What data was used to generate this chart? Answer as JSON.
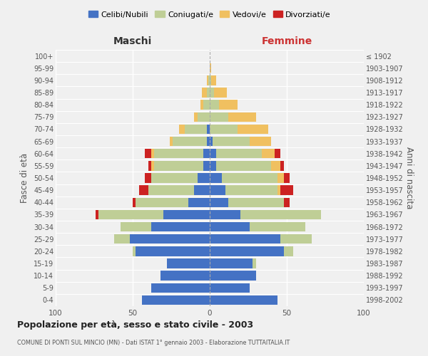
{
  "age_groups": [
    "0-4",
    "5-9",
    "10-14",
    "15-19",
    "20-24",
    "25-29",
    "30-34",
    "35-39",
    "40-44",
    "45-49",
    "50-54",
    "55-59",
    "60-64",
    "65-69",
    "70-74",
    "75-79",
    "80-84",
    "85-89",
    "90-94",
    "95-99",
    "100+"
  ],
  "birth_years": [
    "1998-2002",
    "1993-1997",
    "1988-1992",
    "1983-1987",
    "1978-1982",
    "1973-1977",
    "1968-1972",
    "1963-1967",
    "1958-1962",
    "1953-1957",
    "1948-1952",
    "1943-1947",
    "1938-1942",
    "1933-1937",
    "1928-1932",
    "1923-1927",
    "1918-1922",
    "1913-1917",
    "1908-1912",
    "1903-1907",
    "≤ 1902"
  ],
  "maschi": {
    "celibi": [
      44,
      38,
      32,
      28,
      48,
      52,
      38,
      30,
      14,
      10,
      8,
      4,
      4,
      2,
      2,
      0,
      0,
      0,
      0,
      0,
      0
    ],
    "coniugati": [
      0,
      0,
      0,
      0,
      2,
      10,
      20,
      42,
      34,
      30,
      30,
      32,
      32,
      22,
      14,
      8,
      4,
      2,
      1,
      0,
      0
    ],
    "vedovi": [
      0,
      0,
      0,
      0,
      0,
      0,
      0,
      0,
      0,
      0,
      0,
      2,
      2,
      2,
      4,
      2,
      2,
      3,
      1,
      0,
      0
    ],
    "divorziati": [
      0,
      0,
      0,
      0,
      0,
      0,
      0,
      2,
      2,
      6,
      4,
      2,
      4,
      0,
      0,
      0,
      0,
      0,
      0,
      0,
      0
    ]
  },
  "femmine": {
    "nubili": [
      44,
      26,
      30,
      28,
      48,
      46,
      26,
      20,
      12,
      10,
      8,
      4,
      4,
      2,
      0,
      0,
      0,
      0,
      0,
      0,
      0
    ],
    "coniugate": [
      0,
      0,
      0,
      2,
      6,
      20,
      36,
      52,
      36,
      34,
      36,
      36,
      30,
      24,
      18,
      12,
      6,
      3,
      1,
      0,
      0
    ],
    "vedove": [
      0,
      0,
      0,
      0,
      0,
      0,
      0,
      0,
      0,
      2,
      4,
      6,
      8,
      14,
      20,
      18,
      12,
      8,
      3,
      1,
      0
    ],
    "divorziate": [
      0,
      0,
      0,
      0,
      0,
      0,
      0,
      0,
      4,
      8,
      4,
      2,
      4,
      0,
      0,
      0,
      0,
      0,
      0,
      0,
      0
    ]
  },
  "colors": {
    "celibi_nubili": "#4472C4",
    "coniugati": "#BFCE96",
    "vedovi": "#F0C060",
    "divorziati": "#CC2222"
  },
  "xlim": 100,
  "title": "Popolazione per età, sesso e stato civile - 2003",
  "subtitle": "COMUNE DI PONTI SUL MINCIO (MN) - Dati ISTAT 1° gennaio 2003 - Elaborazione TUTTAITALIA.IT",
  "ylabel_left": "Fasce di età",
  "ylabel_right": "Anni di nascita",
  "xlabel_left": "Maschi",
  "xlabel_right": "Femmine",
  "background_color": "#f0f0f0"
}
